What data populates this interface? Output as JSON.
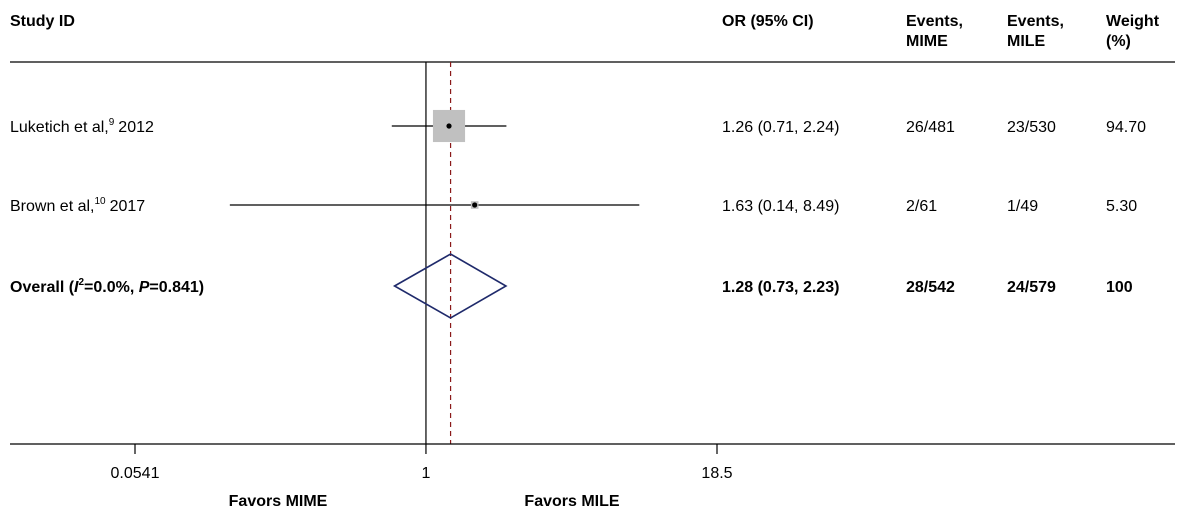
{
  "headers": {
    "study": "Study ID",
    "or": "OR (95% CI)",
    "events_mime": [
      "Events,",
      "MIME"
    ],
    "events_mile": [
      "Events,",
      "MILE"
    ],
    "weight": [
      "Weight",
      "(%)"
    ]
  },
  "chart_data": {
    "type": "forest",
    "x_scale": "log",
    "xlim": [
      0.0541,
      18.5
    ],
    "ticks": [
      {
        "value": 0.0541,
        "label": "0.0541"
      },
      {
        "value": 1,
        "label": "1"
      },
      {
        "value": 18.5,
        "label": "18.5"
      }
    ],
    "null_line": 1,
    "pooled_reference_line": 1.28,
    "studies": [
      {
        "label": "Luketich et al,",
        "ref": "9",
        "year": "2012",
        "or": 1.26,
        "lo": 0.71,
        "hi": 2.24,
        "ci_text": "1.26 (0.71, 2.24)",
        "events_mime": "26/481",
        "events_mile": "23/530",
        "weight_text": "94.70",
        "weight": 94.7
      },
      {
        "label": "Brown et al,",
        "ref": "10",
        "year": "2017",
        "or": 1.63,
        "lo": 0.14,
        "hi": 8.49,
        "ci_text": "1.63 (0.14, 8.49)",
        "events_mime": "2/61",
        "events_mile": "1/49",
        "weight_text": "5.30",
        "weight": 5.3
      }
    ],
    "overall": {
      "label_prefix": "Overall (",
      "i_symbol": "I",
      "i_sup": "2",
      "i_text": "=0.0%, ",
      "p_symbol": "P",
      "p_text": "=0.841)",
      "or": 1.28,
      "lo": 0.73,
      "hi": 2.23,
      "ci_text": "1.28 (0.73, 2.23)",
      "events_mime": "28/542",
      "events_mile": "24/579",
      "weight_text": "100"
    },
    "favors_left": "Favors MIME",
    "favors_right": "Favors MILE",
    "colors": {
      "box": "#c0c0c0",
      "diamond": "#1f2a6b",
      "reference_line": "#8b1a1a",
      "axis": "#000000"
    }
  }
}
